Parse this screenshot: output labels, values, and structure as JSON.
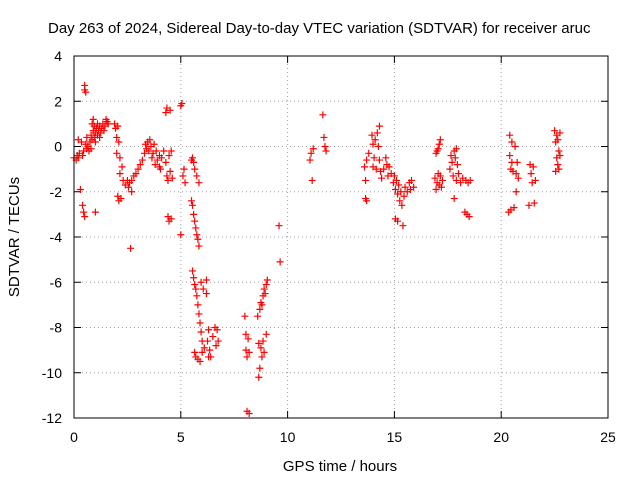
{
  "chart_data": {
    "type": "scatter",
    "title": "Day 263 of 2024, Sidereal Day-to-day VTEC variation (SDTVAR) for receiver aruc",
    "xlabel": "GPS time / hours",
    "ylabel": "SDTVAR / TECUs",
    "xlim": [
      0,
      25
    ],
    "ylim": [
      -12,
      4
    ],
    "xticks": [
      0,
      5,
      10,
      15,
      20,
      25
    ],
    "xtick_labels": [
      "0",
      "5",
      "10",
      "15",
      "20",
      "25"
    ],
    "yticks": [
      4,
      2,
      0,
      -2,
      -4,
      -6,
      -8,
      -10,
      -12
    ],
    "ytick_labels": [
      "4",
      "2",
      "0",
      "-2",
      "-4",
      "-6",
      "-8",
      "-10",
      "-12"
    ],
    "grid": true,
    "marker": "+",
    "color": "#ff0000",
    "series": [
      {
        "name": "SDTVAR",
        "points": [
          [
            0.0,
            -0.5
          ],
          [
            0.1,
            -0.6
          ],
          [
            0.15,
            -0.4
          ],
          [
            0.2,
            0.3
          ],
          [
            0.2,
            -0.5
          ],
          [
            0.25,
            -0.3
          ],
          [
            0.3,
            -1.9
          ],
          [
            0.35,
            0.2
          ],
          [
            0.4,
            -0.4
          ],
          [
            0.4,
            -2.6
          ],
          [
            0.45,
            -2.9
          ],
          [
            0.45,
            -0.2
          ],
          [
            0.5,
            2.5
          ],
          [
            0.5,
            2.7
          ],
          [
            0.5,
            -3.1
          ],
          [
            0.55,
            2.4
          ],
          [
            0.55,
            0.1
          ],
          [
            0.6,
            -0.1
          ],
          [
            0.6,
            0.4
          ],
          [
            0.65,
            0.0
          ],
          [
            0.7,
            -0.2
          ],
          [
            0.75,
            0.2
          ],
          [
            0.8,
            0.5
          ],
          [
            0.8,
            -0.1
          ],
          [
            0.85,
            1.0
          ],
          [
            0.85,
            0.3
          ],
          [
            0.9,
            1.2
          ],
          [
            0.9,
            0.7
          ],
          [
            0.95,
            0.9
          ],
          [
            0.95,
            0.4
          ],
          [
            1.0,
            -2.9
          ],
          [
            1.0,
            0.6
          ],
          [
            1.0,
            0.2
          ],
          [
            1.05,
            0.8
          ],
          [
            1.1,
            0.5
          ],
          [
            1.1,
            1.0
          ],
          [
            1.15,
            0.7
          ],
          [
            1.2,
            0.9
          ],
          [
            1.2,
            0.4
          ],
          [
            1.25,
            0.6
          ],
          [
            1.3,
            0.8
          ],
          [
            1.35,
            1.0
          ],
          [
            1.4,
            0.7
          ],
          [
            1.45,
            0.9
          ],
          [
            1.5,
            1.2
          ],
          [
            1.55,
            1.1
          ],
          [
            1.6,
            1.0
          ],
          [
            1.9,
            1.0
          ],
          [
            1.95,
            0.8
          ],
          [
            2.0,
            0.4
          ],
          [
            2.0,
            -0.3
          ],
          [
            2.05,
            0.9
          ],
          [
            2.05,
            -2.2
          ],
          [
            2.1,
            -2.4
          ],
          [
            2.1,
            0.2
          ],
          [
            2.15,
            -0.5
          ],
          [
            2.15,
            -1.2
          ],
          [
            2.2,
            -2.3
          ],
          [
            2.25,
            -0.9
          ],
          [
            2.3,
            -1.5
          ],
          [
            2.4,
            -1.7
          ],
          [
            2.5,
            -1.5
          ],
          [
            2.55,
            -1.8
          ],
          [
            2.6,
            -1.6
          ],
          [
            2.65,
            -4.5
          ],
          [
            2.7,
            -2.0
          ],
          [
            2.7,
            -1.5
          ],
          [
            2.8,
            -1.3
          ],
          [
            2.9,
            -1.2
          ],
          [
            3.0,
            -1.0
          ],
          [
            3.1,
            -0.8
          ],
          [
            3.2,
            -0.6
          ],
          [
            3.3,
            -0.3
          ],
          [
            3.35,
            0.1
          ],
          [
            3.4,
            -0.1
          ],
          [
            3.45,
            0.2
          ],
          [
            3.5,
            -0.2
          ],
          [
            3.55,
            0.3
          ],
          [
            3.6,
            0.0
          ],
          [
            3.65,
            -0.5
          ],
          [
            3.7,
            -0.3
          ],
          [
            3.75,
            0.1
          ],
          [
            3.8,
            -0.8
          ],
          [
            3.85,
            -0.2
          ],
          [
            3.9,
            -0.6
          ],
          [
            4.0,
            -0.9
          ],
          [
            4.0,
            -0.4
          ],
          [
            4.05,
            -1.0
          ],
          [
            4.1,
            -0.5
          ],
          [
            4.2,
            -0.2
          ],
          [
            4.3,
            1.5
          ],
          [
            4.3,
            -0.7
          ],
          [
            4.35,
            1.7
          ],
          [
            4.35,
            -1.3
          ],
          [
            4.4,
            -1.5
          ],
          [
            4.4,
            -3.1
          ],
          [
            4.45,
            -0.4
          ],
          [
            4.45,
            -3.3
          ],
          [
            4.5,
            1.6
          ],
          [
            4.5,
            -1.1
          ],
          [
            4.55,
            -3.2
          ],
          [
            4.55,
            -0.2
          ],
          [
            4.6,
            -1.4
          ],
          [
            5.0,
            1.8
          ],
          [
            5.0,
            -3.9
          ],
          [
            5.05,
            1.9
          ],
          [
            5.1,
            -1.3
          ],
          [
            5.15,
            -1.0
          ],
          [
            5.2,
            -1.6
          ],
          [
            5.5,
            -0.6
          ],
          [
            5.5,
            -2.4
          ],
          [
            5.55,
            -0.5
          ],
          [
            5.55,
            -2.6
          ],
          [
            5.55,
            -5.5
          ],
          [
            5.6,
            -0.7
          ],
          [
            5.6,
            -3.0
          ],
          [
            5.6,
            -5.8
          ],
          [
            5.65,
            -1.0
          ],
          [
            5.65,
            -3.3
          ],
          [
            5.65,
            -6.1
          ],
          [
            5.65,
            -9.1
          ],
          [
            5.7,
            -3.6
          ],
          [
            5.7,
            -6.3
          ],
          [
            5.7,
            -9.3
          ],
          [
            5.75,
            -1.3
          ],
          [
            5.75,
            -3.9
          ],
          [
            5.75,
            -6.6
          ],
          [
            5.8,
            -4.1
          ],
          [
            5.8,
            -7.0
          ],
          [
            5.8,
            -9.4
          ],
          [
            5.85,
            -1.6
          ],
          [
            5.85,
            -4.4
          ],
          [
            5.85,
            -7.4
          ],
          [
            5.9,
            -7.8
          ],
          [
            5.9,
            -9.5
          ],
          [
            5.95,
            -8.2
          ],
          [
            5.95,
            -6.0
          ],
          [
            6.0,
            -8.6
          ],
          [
            6.0,
            -9.1
          ],
          [
            6.05,
            -6.3
          ],
          [
            6.1,
            -8.9
          ],
          [
            6.2,
            -5.9
          ],
          [
            6.2,
            -6.5
          ],
          [
            6.25,
            -8.6
          ],
          [
            6.3,
            -9.3
          ],
          [
            6.3,
            -8.1
          ],
          [
            6.35,
            -9.0
          ],
          [
            6.4,
            -9.3
          ],
          [
            6.5,
            -8.4
          ],
          [
            6.6,
            -8.0
          ],
          [
            6.65,
            -8.8
          ],
          [
            6.7,
            -8.1
          ],
          [
            6.75,
            -8.6
          ],
          [
            8.0,
            -7.5
          ],
          [
            8.05,
            -8.3
          ],
          [
            8.05,
            -9.0
          ],
          [
            8.1,
            -9.3
          ],
          [
            8.1,
            -11.7
          ],
          [
            8.15,
            -8.5
          ],
          [
            8.2,
            -9.1
          ],
          [
            8.2,
            -11.8
          ],
          [
            8.6,
            -7.5
          ],
          [
            8.65,
            -10.2
          ],
          [
            8.65,
            -8.7
          ],
          [
            8.7,
            -7.2
          ],
          [
            8.7,
            -9.8
          ],
          [
            8.75,
            -6.9
          ],
          [
            8.75,
            -8.9
          ],
          [
            8.8,
            -7.0
          ],
          [
            8.8,
            -9.3
          ],
          [
            8.85,
            -6.6
          ],
          [
            8.85,
            -8.6
          ],
          [
            8.9,
            -6.3
          ],
          [
            8.9,
            -9.1
          ],
          [
            8.95,
            -6.5
          ],
          [
            9.0,
            -6.1
          ],
          [
            9.0,
            -8.3
          ],
          [
            9.05,
            -5.9
          ],
          [
            9.6,
            -3.5
          ],
          [
            9.65,
            -5.1
          ],
          [
            11.05,
            -0.6
          ],
          [
            11.1,
            -0.3
          ],
          [
            11.15,
            -1.5
          ],
          [
            11.2,
            -0.1
          ],
          [
            11.65,
            1.4
          ],
          [
            11.7,
            0.4
          ],
          [
            11.75,
            0.0
          ],
          [
            11.8,
            -0.2
          ],
          [
            13.6,
            -0.9
          ],
          [
            13.65,
            -1.5
          ],
          [
            13.65,
            -2.3
          ],
          [
            13.7,
            -0.6
          ],
          [
            13.7,
            -2.4
          ],
          [
            13.8,
            -0.3
          ],
          [
            13.95,
            0.5
          ],
          [
            14.0,
            0.1
          ],
          [
            14.0,
            -0.9
          ],
          [
            14.05,
            -0.5
          ],
          [
            14.1,
            0.3
          ],
          [
            14.15,
            -1.0
          ],
          [
            14.2,
            0.6
          ],
          [
            14.25,
            0.0
          ],
          [
            14.3,
            0.9
          ],
          [
            14.3,
            -0.6
          ],
          [
            14.35,
            -1.1
          ],
          [
            14.4,
            -1.4
          ],
          [
            14.5,
            -1.0
          ],
          [
            14.6,
            -0.5
          ],
          [
            14.65,
            -0.8
          ],
          [
            14.7,
            -1.3
          ],
          [
            14.75,
            -0.9
          ],
          [
            14.85,
            -1.2
          ],
          [
            14.95,
            -1.6
          ],
          [
            15.0,
            -1.3
          ],
          [
            15.05,
            -3.2
          ],
          [
            15.05,
            -1.9
          ],
          [
            15.1,
            -1.5
          ],
          [
            15.15,
            -3.3
          ],
          [
            15.15,
            -2.1
          ],
          [
            15.2,
            -1.7
          ],
          [
            15.25,
            -2.4
          ],
          [
            15.3,
            -2.0
          ],
          [
            15.35,
            -2.6
          ],
          [
            15.4,
            -3.5
          ],
          [
            15.45,
            -2.2
          ],
          [
            15.5,
            -1.8
          ],
          [
            15.6,
            -2.0
          ],
          [
            15.7,
            -1.6
          ],
          [
            15.75,
            -1.9
          ],
          [
            15.8,
            -1.5
          ],
          [
            15.9,
            -1.8
          ],
          [
            16.9,
            -1.4
          ],
          [
            16.95,
            -0.3
          ],
          [
            16.95,
            -1.9
          ],
          [
            17.0,
            -0.2
          ],
          [
            17.0,
            -1.6
          ],
          [
            17.05,
            -0.1
          ],
          [
            17.05,
            -1.2
          ],
          [
            17.1,
            0.1
          ],
          [
            17.1,
            -1.7
          ],
          [
            17.15,
            0.3
          ],
          [
            17.15,
            -1.3
          ],
          [
            17.2,
            -1.8
          ],
          [
            17.25,
            -1.5
          ],
          [
            17.6,
            -1.0
          ],
          [
            17.65,
            -0.4
          ],
          [
            17.7,
            -0.7
          ],
          [
            17.75,
            -1.3
          ],
          [
            17.8,
            -0.2
          ],
          [
            17.8,
            -2.3
          ],
          [
            17.85,
            -0.5
          ],
          [
            17.9,
            -0.1
          ],
          [
            17.9,
            -1.5
          ],
          [
            17.95,
            -0.8
          ],
          [
            18.0,
            -1.2
          ],
          [
            18.1,
            -1.6
          ],
          [
            18.2,
            -1.4
          ],
          [
            18.3,
            -2.9
          ],
          [
            18.35,
            -1.5
          ],
          [
            18.4,
            -3.0
          ],
          [
            18.45,
            -1.6
          ],
          [
            18.5,
            -3.1
          ],
          [
            18.55,
            -1.5
          ],
          [
            20.35,
            -2.9
          ],
          [
            20.4,
            0.5
          ],
          [
            20.4,
            -0.4
          ],
          [
            20.45,
            -1.0
          ],
          [
            20.45,
            -2.8
          ],
          [
            20.5,
            0.2
          ],
          [
            20.5,
            -0.7
          ],
          [
            20.55,
            -1.1
          ],
          [
            20.6,
            -2.7
          ],
          [
            20.65,
            0.0
          ],
          [
            20.7,
            -1.2
          ],
          [
            20.7,
            -2.0
          ],
          [
            20.75,
            -0.7
          ],
          [
            20.8,
            -1.4
          ],
          [
            21.3,
            -2.6
          ],
          [
            21.35,
            -0.8
          ],
          [
            21.4,
            -1.2
          ],
          [
            21.45,
            -1.6
          ],
          [
            21.5,
            -0.9
          ],
          [
            21.55,
            -2.5
          ],
          [
            21.6,
            -1.5
          ],
          [
            22.5,
            0.7
          ],
          [
            22.55,
            -1.1
          ],
          [
            22.55,
            0.2
          ],
          [
            22.6,
            -0.5
          ],
          [
            22.6,
            0.5
          ],
          [
            22.65,
            -0.8
          ],
          [
            22.65,
            0.3
          ],
          [
            22.7,
            -0.2
          ],
          [
            22.7,
            -1.0
          ],
          [
            22.75,
            0.6
          ],
          [
            22.75,
            -0.4
          ]
        ]
      }
    ]
  }
}
